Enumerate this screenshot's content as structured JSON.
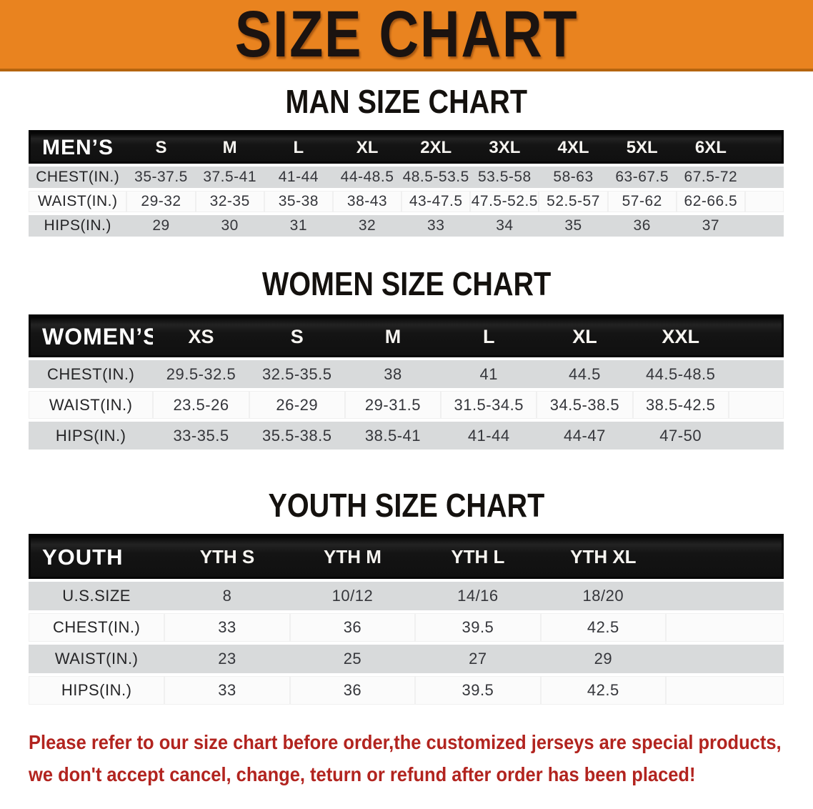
{
  "banner": {
    "title": "SIZE CHART",
    "bg_color": "#e9831f",
    "text_color": "#1b1310"
  },
  "sections": [
    {
      "heading": "MAN SIZE CHART",
      "table": {
        "label_header": "MEN’S",
        "size_headers": [
          "S",
          "M",
          "L",
          "XL",
          "2XL",
          "3XL",
          "4XL",
          "5XL",
          "6XL"
        ],
        "rows": [
          {
            "label": "CHEST(IN.)",
            "values": [
              "35-37.5",
              "37.5-41",
              "41-44",
              "44-48.5",
              "48.5-53.5",
              "53.5-58",
              "58-63",
              "63-67.5",
              "67.5-72"
            ]
          },
          {
            "label": "WAIST(IN.)",
            "values": [
              "29-32",
              "32-35",
              "35-38",
              "38-43",
              "43-47.5",
              "47.5-52.5",
              "52.5-57",
              "57-62",
              "62-66.5"
            ]
          },
          {
            "label": "HIPS(IN.)",
            "values": [
              "29",
              "30",
              "31",
              "32",
              "33",
              "34",
              "35",
              "36",
              "37"
            ]
          }
        ]
      }
    },
    {
      "heading": "WOMEN SIZE CHART",
      "table": {
        "label_header": "WOMEN’S",
        "size_headers": [
          "XS",
          "S",
          "M",
          "L",
          "XL",
          "XXL"
        ],
        "rows": [
          {
            "label": "CHEST(IN.)",
            "values": [
              "29.5-32.5",
              "32.5-35.5",
              "38",
              "41",
              "44.5",
              "44.5-48.5"
            ]
          },
          {
            "label": "WAIST(IN.)",
            "values": [
              "23.5-26",
              "26-29",
              "29-31.5",
              "31.5-34.5",
              "34.5-38.5",
              "38.5-42.5"
            ]
          },
          {
            "label": "HIPS(IN.)",
            "values": [
              "33-35.5",
              "35.5-38.5",
              "38.5-41",
              "41-44",
              "44-47",
              "47-50"
            ]
          }
        ]
      }
    },
    {
      "heading": "YOUTH SIZE CHART",
      "table": {
        "label_header": "YOUTH",
        "size_headers": [
          "YTH S",
          "YTH M",
          "YTH L",
          "YTH XL"
        ],
        "rows": [
          {
            "label": "U.S.SIZE",
            "values": [
              "8",
              "10/12",
              "14/16",
              "18/20"
            ]
          },
          {
            "label": "CHEST(IN.)",
            "values": [
              "33",
              "36",
              "39.5",
              "42.5"
            ]
          },
          {
            "label": "WAIST(IN.)",
            "values": [
              "23",
              "25",
              "27",
              "29"
            ]
          },
          {
            "label": "HIPS(IN.)",
            "values": [
              "33",
              "36",
              "39.5",
              "42.5"
            ]
          }
        ]
      }
    }
  ],
  "disclaimer": {
    "color": "#b2241f",
    "lines": [
      "Please refer to our size chart before order,the customized jerseys are special products,",
      "we don't accept cancel, change, teturn or refund after order has been placed!"
    ]
  },
  "colors": {
    "banner_orange": "#e9831f",
    "banner_border": "#b5650f",
    "header_band_black": "#141414",
    "row_gray": "#d8dadb",
    "row_white": "#fbfbfb",
    "value_text": "#35363b",
    "disclaimer_red": "#b2241f"
  }
}
